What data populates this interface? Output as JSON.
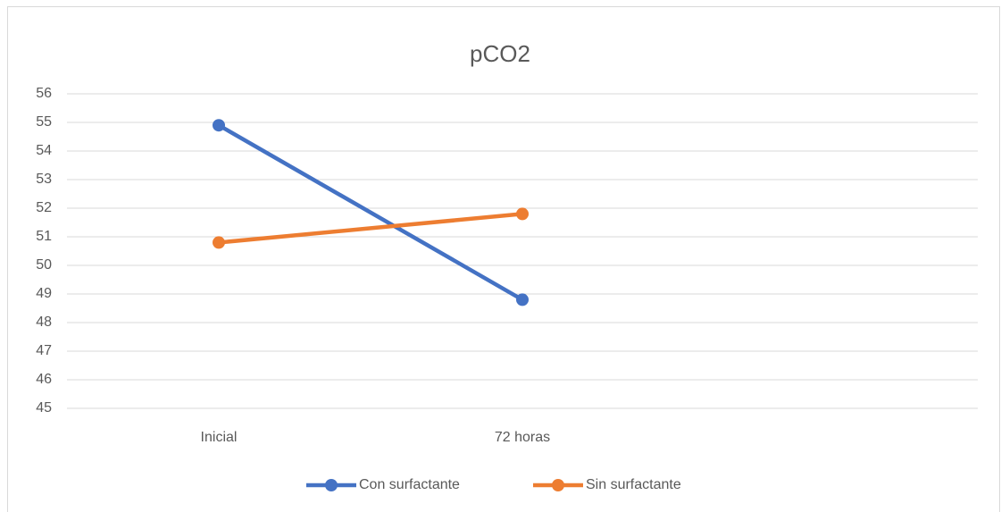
{
  "chart_data": {
    "type": "line",
    "title": "pCO2",
    "categories": [
      "Inicial",
      "72 horas",
      null
    ],
    "series": [
      {
        "name": "Con surfactante",
        "color": "#4472c4",
        "values": [
          54.9,
          48.8,
          null
        ]
      },
      {
        "name": "Sin surfactante",
        "color": "#ed7d31",
        "values": [
          50.8,
          51.8,
          null
        ]
      }
    ],
    "ylim": [
      45,
      56
    ],
    "yticks": [
      45,
      46,
      47,
      48,
      49,
      50,
      51,
      52,
      53,
      54,
      55,
      56
    ],
    "grid": true,
    "legend": "bottom"
  }
}
